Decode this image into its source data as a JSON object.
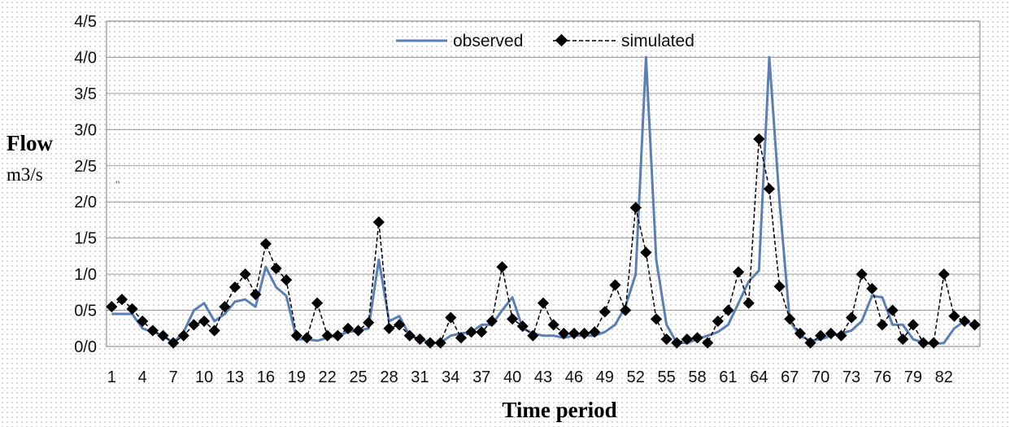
{
  "chart_data": {
    "type": "line",
    "ylabel": "Flow",
    "yunit": "m3/s",
    "xlabel": "Time period",
    "stray_mark": "''",
    "ylim": [
      0,
      4.5
    ],
    "yticks": [
      {
        "value": 0,
        "label": "0/0"
      },
      {
        "value": 0.5,
        "label": "0/5"
      },
      {
        "value": 1.0,
        "label": "1/0"
      },
      {
        "value": 1.5,
        "label": "1/5"
      },
      {
        "value": 2.0,
        "label": "2/0"
      },
      {
        "value": 2.5,
        "label": "2/5"
      },
      {
        "value": 3.0,
        "label": "3/0"
      },
      {
        "value": 3.5,
        "label": "3/5"
      },
      {
        "value": 4.0,
        "label": "4/0"
      },
      {
        "value": 4.5,
        "label": "4/5"
      }
    ],
    "xlim": [
      0.5,
      85.5
    ],
    "xticks": [
      "1",
      "4",
      "7",
      "10",
      "13",
      "16",
      "19",
      "22",
      "25",
      "28",
      "31",
      "34",
      "37",
      "40",
      "43",
      "46",
      "49",
      "52",
      "55",
      "58",
      "61",
      "64",
      "67",
      "70",
      "73",
      "76",
      "79",
      "82"
    ],
    "x": [
      1,
      2,
      3,
      4,
      5,
      6,
      7,
      8,
      9,
      10,
      11,
      12,
      13,
      14,
      15,
      16,
      17,
      18,
      19,
      20,
      21,
      22,
      23,
      24,
      25,
      26,
      27,
      28,
      29,
      30,
      31,
      32,
      33,
      34,
      35,
      36,
      37,
      38,
      39,
      40,
      41,
      42,
      43,
      44,
      45,
      46,
      47,
      48,
      49,
      50,
      51,
      52,
      53,
      54,
      55,
      56,
      57,
      58,
      59,
      60,
      61,
      62,
      63,
      64,
      65,
      66,
      67,
      68,
      69,
      70,
      71,
      72,
      73,
      74,
      75,
      76,
      77,
      78,
      79,
      80,
      81,
      82,
      83,
      84,
      85
    ],
    "legend_position": "top-center",
    "series": [
      {
        "name": "observed",
        "color": "#5b7fb5",
        "style": "solid",
        "values": [
          0.45,
          0.45,
          0.45,
          0.25,
          0.2,
          0.15,
          0.05,
          0.2,
          0.5,
          0.6,
          0.35,
          0.45,
          0.62,
          0.65,
          0.55,
          1.1,
          0.82,
          0.7,
          0.1,
          0.1,
          0.08,
          0.12,
          0.15,
          0.2,
          0.22,
          0.25,
          1.2,
          0.35,
          0.42,
          0.15,
          0.1,
          0.05,
          0.05,
          0.15,
          0.18,
          0.2,
          0.3,
          0.3,
          0.5,
          0.68,
          0.25,
          0.18,
          0.15,
          0.15,
          0.12,
          0.15,
          0.15,
          0.15,
          0.2,
          0.3,
          0.55,
          1.0,
          4.0,
          1.2,
          0.3,
          0.05,
          0.05,
          0.1,
          0.15,
          0.2,
          0.3,
          0.6,
          0.9,
          1.05,
          4.0,
          2.0,
          0.35,
          0.15,
          0.08,
          0.1,
          0.15,
          0.18,
          0.22,
          0.35,
          0.7,
          0.68,
          0.3,
          0.3,
          0.1,
          0.05,
          0.03,
          0.05,
          0.25,
          0.35,
          0.3
        ]
      },
      {
        "name": "simulated",
        "color": "#000000",
        "style": "dashed",
        "marker": "diamond",
        "values": [
          0.55,
          0.65,
          0.52,
          0.35,
          0.22,
          0.15,
          0.05,
          0.15,
          0.3,
          0.35,
          0.22,
          0.55,
          0.82,
          1.0,
          0.72,
          1.42,
          1.08,
          0.92,
          0.15,
          0.12,
          0.6,
          0.15,
          0.15,
          0.25,
          0.22,
          0.33,
          1.72,
          0.25,
          0.3,
          0.15,
          0.1,
          0.05,
          0.05,
          0.4,
          0.12,
          0.2,
          0.2,
          0.35,
          1.1,
          0.38,
          0.28,
          0.15,
          0.6,
          0.3,
          0.18,
          0.18,
          0.18,
          0.2,
          0.48,
          0.85,
          0.5,
          1.92,
          1.3,
          0.38,
          0.1,
          0.05,
          0.1,
          0.12,
          0.05,
          0.35,
          0.5,
          1.03,
          0.6,
          2.87,
          2.18,
          0.83,
          0.38,
          0.18,
          0.05,
          0.15,
          0.18,
          0.15,
          0.4,
          1.0,
          0.8,
          0.3,
          0.5,
          0.1,
          0.3,
          0.05,
          0.05,
          1.0,
          0.42,
          0.35,
          0.3
        ]
      }
    ]
  }
}
